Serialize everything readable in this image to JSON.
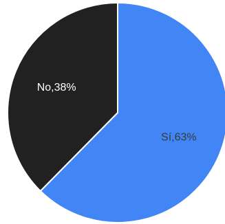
{
  "chart_data": {
    "type": "pie",
    "slices": [
      {
        "label": "Sí,63%",
        "value": 63,
        "color": "#4285f4",
        "label_color": "#3a3a3a"
      },
      {
        "label": "No,38%",
        "value": 38,
        "color": "#212121",
        "label_color": "#ffffff"
      }
    ],
    "start_angle_deg": 0,
    "direction": "clockwise",
    "border_color": "#ffffff"
  }
}
